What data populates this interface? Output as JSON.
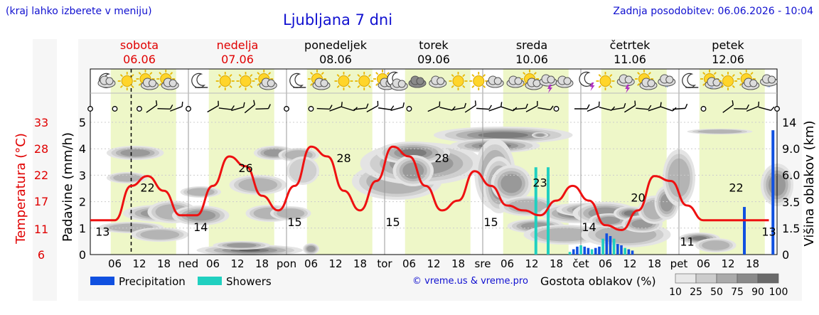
{
  "header": {
    "hint": "(kraj lahko izberete v meniju)",
    "title": "Ljubljana 7 dni",
    "updated": "Zadnja posodobitev: 06.06.2026 - 10:04"
  },
  "days": [
    {
      "name": "sobota",
      "date": "06.06",
      "weekend": true
    },
    {
      "name": "nedelja",
      "date": "07.06",
      "weekend": true
    },
    {
      "name": "ponedeljek",
      "date": "08.06",
      "weekend": false
    },
    {
      "name": "torek",
      "date": "09.06",
      "weekend": false
    },
    {
      "name": "sreda",
      "date": "10.06",
      "weekend": false
    },
    {
      "name": "četrtek",
      "date": "11.06",
      "weekend": false
    },
    {
      "name": "petek",
      "date": "12.06",
      "weekend": false
    }
  ],
  "x_axis": {
    "day_abbr": [
      "ned",
      "pon",
      "tor",
      "sre",
      "čet",
      "pet"
    ],
    "hour_ticks": [
      "06",
      "12",
      "18"
    ]
  },
  "axes": {
    "temp_label": "Temperatura (°C)",
    "temp_ticks": [
      "33",
      "28",
      "22",
      "17",
      "11",
      "6"
    ],
    "precip_label": "Padavine (mm/h)",
    "precip_ticks": [
      "0",
      "1",
      "2",
      "3",
      "4",
      "5"
    ],
    "cloud_label": "Višina oblakov (km)",
    "cloud_ticks": [
      "0",
      "1.5",
      "3.5",
      "6.0",
      "9.0",
      "14"
    ]
  },
  "legend": {
    "precipitation": "Precipitation",
    "showers": "Showers",
    "copyright": "© vreme.us & vreme.pro",
    "cloud_density_label": "Gostota oblakov (%)",
    "cloud_density_ticks": [
      "10",
      "25",
      "50",
      "75",
      "90",
      "100"
    ]
  },
  "colors": {
    "temperature": "#ee1111",
    "precipitation": "#1050e0",
    "showers": "#20d0c0",
    "day_band": "#eef7c8",
    "night_band": "#ffffff",
    "weekend_text": "#e00000",
    "title_text": "#1010d0"
  },
  "chart_data": {
    "type": "line",
    "title": "Ljubljana 7 dni",
    "xlabel": "",
    "ylabel": "Temperatura (°C)",
    "ylim": [
      6,
      33
    ],
    "x_unit": "hours since 06.06 00:00",
    "series": [
      {
        "name": "Temperatura (°C)",
        "x": [
          0,
          6,
          10,
          14,
          18,
          22,
          26,
          30,
          34,
          38,
          42,
          46,
          50,
          54,
          58,
          62,
          66,
          70,
          74,
          78,
          82,
          86,
          90,
          94,
          98,
          102,
          106,
          110,
          114,
          118,
          122,
          126,
          130,
          134,
          138,
          142,
          146,
          150,
          154,
          158,
          162,
          166
        ],
        "values": [
          13,
          13,
          20,
          22,
          19,
          14,
          14,
          20,
          26,
          24,
          18,
          15,
          20,
          28,
          26,
          19,
          15,
          21,
          28,
          26,
          20,
          15,
          17,
          23,
          20,
          16,
          15,
          14,
          17,
          20,
          17,
          12,
          11,
          15,
          22,
          21,
          16,
          13,
          13,
          13,
          13,
          13
        ]
      }
    ],
    "temperature_labels": [
      {
        "hour": 3,
        "value": 13
      },
      {
        "hour": 14,
        "value": 22
      },
      {
        "hour": 27,
        "value": 14
      },
      {
        "hour": 38,
        "value": 26
      },
      {
        "hour": 50,
        "value": 15
      },
      {
        "hour": 62,
        "value": 28
      },
      {
        "hour": 74,
        "value": 15
      },
      {
        "hour": 86,
        "value": 28
      },
      {
        "hour": 98,
        "value": 15
      },
      {
        "hour": 110,
        "value": 23
      },
      {
        "hour": 122,
        "value": 14
      },
      {
        "hour": 134,
        "value": 20
      },
      {
        "hour": 146,
        "value": 11
      },
      {
        "hour": 158,
        "value": 22
      },
      {
        "hour": 166,
        "value": 13
      }
    ],
    "precipitation_mm_h": [
      {
        "hour": 160,
        "value": 1.8
      },
      {
        "hour": 167,
        "value": 4.7
      }
    ],
    "showers_mm_h": [
      {
        "hour": 109,
        "value": 3.3
      },
      {
        "hour": 112,
        "value": 3.3
      }
    ],
    "thursday_precip_mm_h": [
      0.1,
      0.2,
      0.3,
      0.35,
      0.3,
      0.25,
      0.2,
      0.25,
      0.3,
      0.6,
      0.8,
      0.7,
      0.6,
      0.4,
      0.35,
      0.25,
      0.2,
      0.15
    ]
  }
}
